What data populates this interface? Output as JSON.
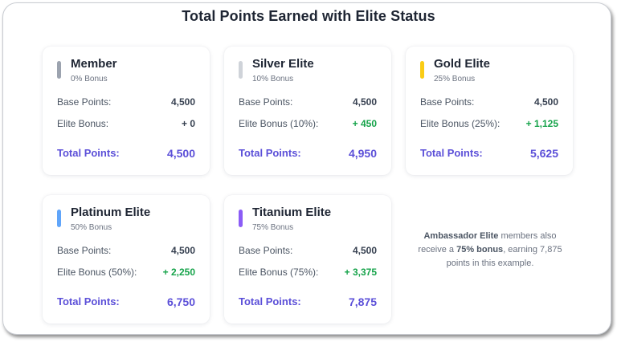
{
  "title": "Total Points Earned with Elite Status",
  "colors": {
    "accent_total": "#5b4fd8",
    "bonus_green": "#16a34a"
  },
  "labels": {
    "base": "Base Points:",
    "total": "Total Points:"
  },
  "tiers": [
    {
      "name": "Member",
      "bonus_pct": "0% Bonus",
      "bonus_label": "Elite Bonus:",
      "base": "4,500",
      "bonus": "+ 0",
      "total": "4,500",
      "color": "#9ca3af"
    },
    {
      "name": "Silver Elite",
      "bonus_pct": "10% Bonus",
      "bonus_label": "Elite Bonus (10%):",
      "base": "4,500",
      "bonus": "+ 450",
      "total": "4,950",
      "color": "#cfd3d9"
    },
    {
      "name": "Gold Elite",
      "bonus_pct": "25% Bonus",
      "bonus_label": "Elite Bonus (25%):",
      "base": "4,500",
      "bonus": "+ 1,125",
      "total": "5,625",
      "color": "#facc15"
    },
    {
      "name": "Platinum Elite",
      "bonus_pct": "50% Bonus",
      "bonus_label": "Elite Bonus (50%):",
      "base": "4,500",
      "bonus": "+ 2,250",
      "total": "6,750",
      "color": "#60a5fa"
    },
    {
      "name": "Titanium Elite",
      "bonus_pct": "75% Bonus",
      "bonus_label": "Elite Bonus (75%):",
      "base": "4,500",
      "bonus": "+ 3,375",
      "total": "7,875",
      "color": "#8b5cf6"
    }
  ],
  "note": {
    "tier": "Ambassador Elite",
    "text1": " members also receive a ",
    "bonus": "75% bonus",
    "text2": ", earning 7,875 points in this example."
  }
}
